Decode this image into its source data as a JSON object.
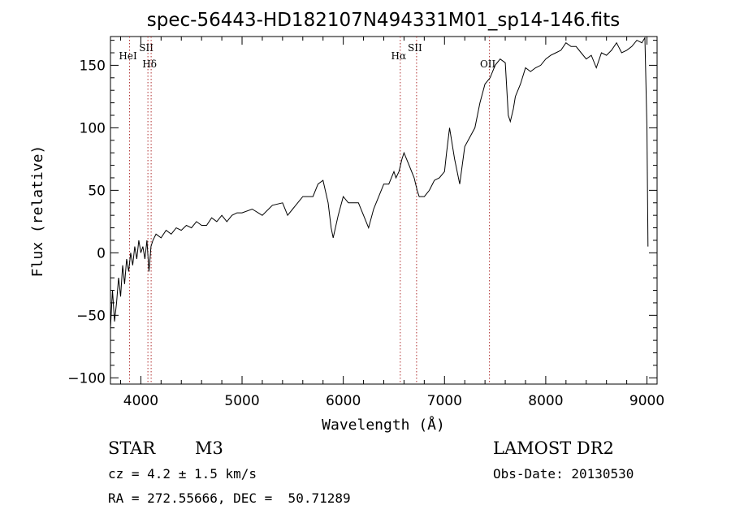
{
  "chart_data": {
    "type": "line",
    "title": "spec-56443-HD182107N494331M01_sp14-146.fits",
    "xlabel": "Wavelength (Å)",
    "ylabel": "Flux (relative)",
    "xlim": [
      3700,
      9100
    ],
    "ylim": [
      -105,
      173
    ],
    "xticks": [
      4000,
      5000,
      6000,
      7000,
      8000,
      9000
    ],
    "yticks": [
      -100,
      -50,
      0,
      50,
      100,
      150
    ],
    "grid": false,
    "series": [
      {
        "color": "#000000",
        "x": [
          3700,
          3720,
          3740,
          3760,
          3780,
          3800,
          3820,
          3840,
          3860,
          3880,
          3900,
          3920,
          3940,
          3960,
          3980,
          4000,
          4020,
          4040,
          4060,
          4080,
          4100,
          4120,
          4150,
          4200,
          4250,
          4300,
          4350,
          4400,
          4450,
          4500,
          4550,
          4600,
          4650,
          4700,
          4750,
          4800,
          4850,
          4900,
          4950,
          5000,
          5100,
          5200,
          5300,
          5400,
          5450,
          5500,
          5600,
          5700,
          5750,
          5800,
          5850,
          5880,
          5900,
          5950,
          6000,
          6050,
          6100,
          6150,
          6200,
          6250,
          6300,
          6350,
          6400,
          6450,
          6500,
          6520,
          6550,
          6580,
          6600,
          6650,
          6700,
          6730,
          6750,
          6800,
          6850,
          6900,
          6950,
          7000,
          7020,
          7050,
          7100,
          7150,
          7200,
          7300,
          7350,
          7400,
          7450,
          7500,
          7550,
          7600,
          7630,
          7650,
          7680,
          7700,
          7750,
          7800,
          7850,
          7900,
          7950,
          8000,
          8050,
          8100,
          8150,
          8200,
          8250,
          8300,
          8350,
          8400,
          8450,
          8500,
          8550,
          8600,
          8650,
          8700,
          8750,
          8800,
          8850,
          8900,
          8950,
          8980,
          9000,
          9010
        ],
        "y": [
          -60,
          -30,
          -55,
          -40,
          -20,
          -35,
          -10,
          -25,
          -5,
          -15,
          0,
          -10,
          5,
          -5,
          10,
          0,
          5,
          -5,
          10,
          -15,
          5,
          10,
          15,
          12,
          18,
          15,
          20,
          18,
          22,
          20,
          25,
          22,
          22,
          28,
          25,
          30,
          25,
          30,
          32,
          32,
          35,
          30,
          38,
          40,
          30,
          35,
          45,
          45,
          55,
          58,
          40,
          20,
          12,
          30,
          45,
          40,
          40,
          40,
          30,
          20,
          35,
          45,
          55,
          55,
          65,
          60,
          65,
          75,
          80,
          70,
          60,
          50,
          45,
          45,
          50,
          58,
          60,
          65,
          80,
          100,
          75,
          55,
          85,
          100,
          120,
          135,
          140,
          150,
          155,
          152,
          110,
          105,
          115,
          125,
          135,
          148,
          145,
          148,
          150,
          155,
          158,
          160,
          162,
          168,
          165,
          165,
          160,
          155,
          158,
          148,
          160,
          158,
          162,
          168,
          160,
          162,
          165,
          170,
          168,
          172,
          100,
          5
        ]
      }
    ],
    "vlines": [
      {
        "x": 3889,
        "label": "HeI"
      },
      {
        "x": 4070,
        "label": "SII"
      },
      {
        "x": 4102,
        "label": "Hδ"
      },
      {
        "x": 6563,
        "label": "Hα"
      },
      {
        "x": 6724,
        "label": "SII"
      },
      {
        "x": 7444,
        "label": "OII"
      }
    ]
  },
  "info": {
    "object_type": "STAR",
    "subclass": "M3",
    "survey": "LAMOST DR2",
    "cz": "cz = 4.2 ± 1.5 km/s",
    "obs_date": "Obs-Date: 20130530",
    "coords": "RA = 272.55666, DEC =  50.71289"
  }
}
